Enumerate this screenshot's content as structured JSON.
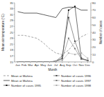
{
  "chart_data": {
    "type": "line",
    "categories": [
      "Jan",
      "Feb",
      "Mar",
      "Apr",
      "May",
      "Jun",
      "Jul",
      "Aug",
      "Sep",
      "Oct",
      "Nov",
      "Dec"
    ],
    "xlabel": "Month",
    "ylabel": "Mean air temperature (°C)",
    "y2label": "Number of cases",
    "ylim": [
      15,
      35
    ],
    "yticks": [
      15,
      17,
      19,
      21,
      23,
      25,
      27,
      29,
      31,
      33,
      35
    ],
    "y2lim": [
      0,
      80
    ],
    "y2ticks": [
      0,
      10,
      20,
      30,
      40,
      50,
      60,
      70,
      80
    ],
    "grid": false,
    "legend": "bottom",
    "series": [
      {
        "name": "Mean at Mahina",
        "color": "#888888",
        "line_style": "dashed",
        "values": [
          24.0,
          24.0,
          23.5,
          23.0,
          21.5,
          19.5,
          18.0,
          17.5,
          19.0,
          21.5,
          23.5,
          24.5
        ]
      },
      {
        "name": "Mean at Mahina",
        "color": "#333333",
        "line_style": "solid",
        "values": [
          32.0,
          31.5,
          31.5,
          31.5,
          31.0,
          30.5,
          30.0,
          33.0,
          33.5,
          33.5,
          32.5,
          32.5
        ]
      },
      {
        "name": "Number of cases 1995",
        "color": "#111111",
        "line_style": "solid",
        "marker": "square",
        "axis": "y2",
        "values": [
          0,
          0,
          0,
          0,
          0,
          0,
          1,
          5,
          70,
          75,
          5,
          2
        ]
      },
      {
        "name": "Number of cases 1996",
        "color": "#444444",
        "line_style": "solid",
        "marker": "square",
        "axis": "y2",
        "values": [
          0,
          0,
          0,
          0,
          0,
          0,
          1,
          8,
          60,
          28,
          4,
          2
        ]
      },
      {
        "name": "Number of cases 1997",
        "color": "#777777",
        "line_style": "solid",
        "marker": "square",
        "axis": "y2",
        "values": [
          0,
          0,
          0,
          0,
          0,
          0,
          1,
          4,
          32,
          18,
          4,
          2
        ]
      },
      {
        "name": "Number of cases 1998",
        "color": "#aaaaaa",
        "line_style": "solid",
        "marker": "square",
        "axis": "y2",
        "values": [
          0,
          0,
          0,
          0,
          0,
          0,
          1,
          2,
          12,
          10,
          12,
          5
        ]
      }
    ]
  }
}
